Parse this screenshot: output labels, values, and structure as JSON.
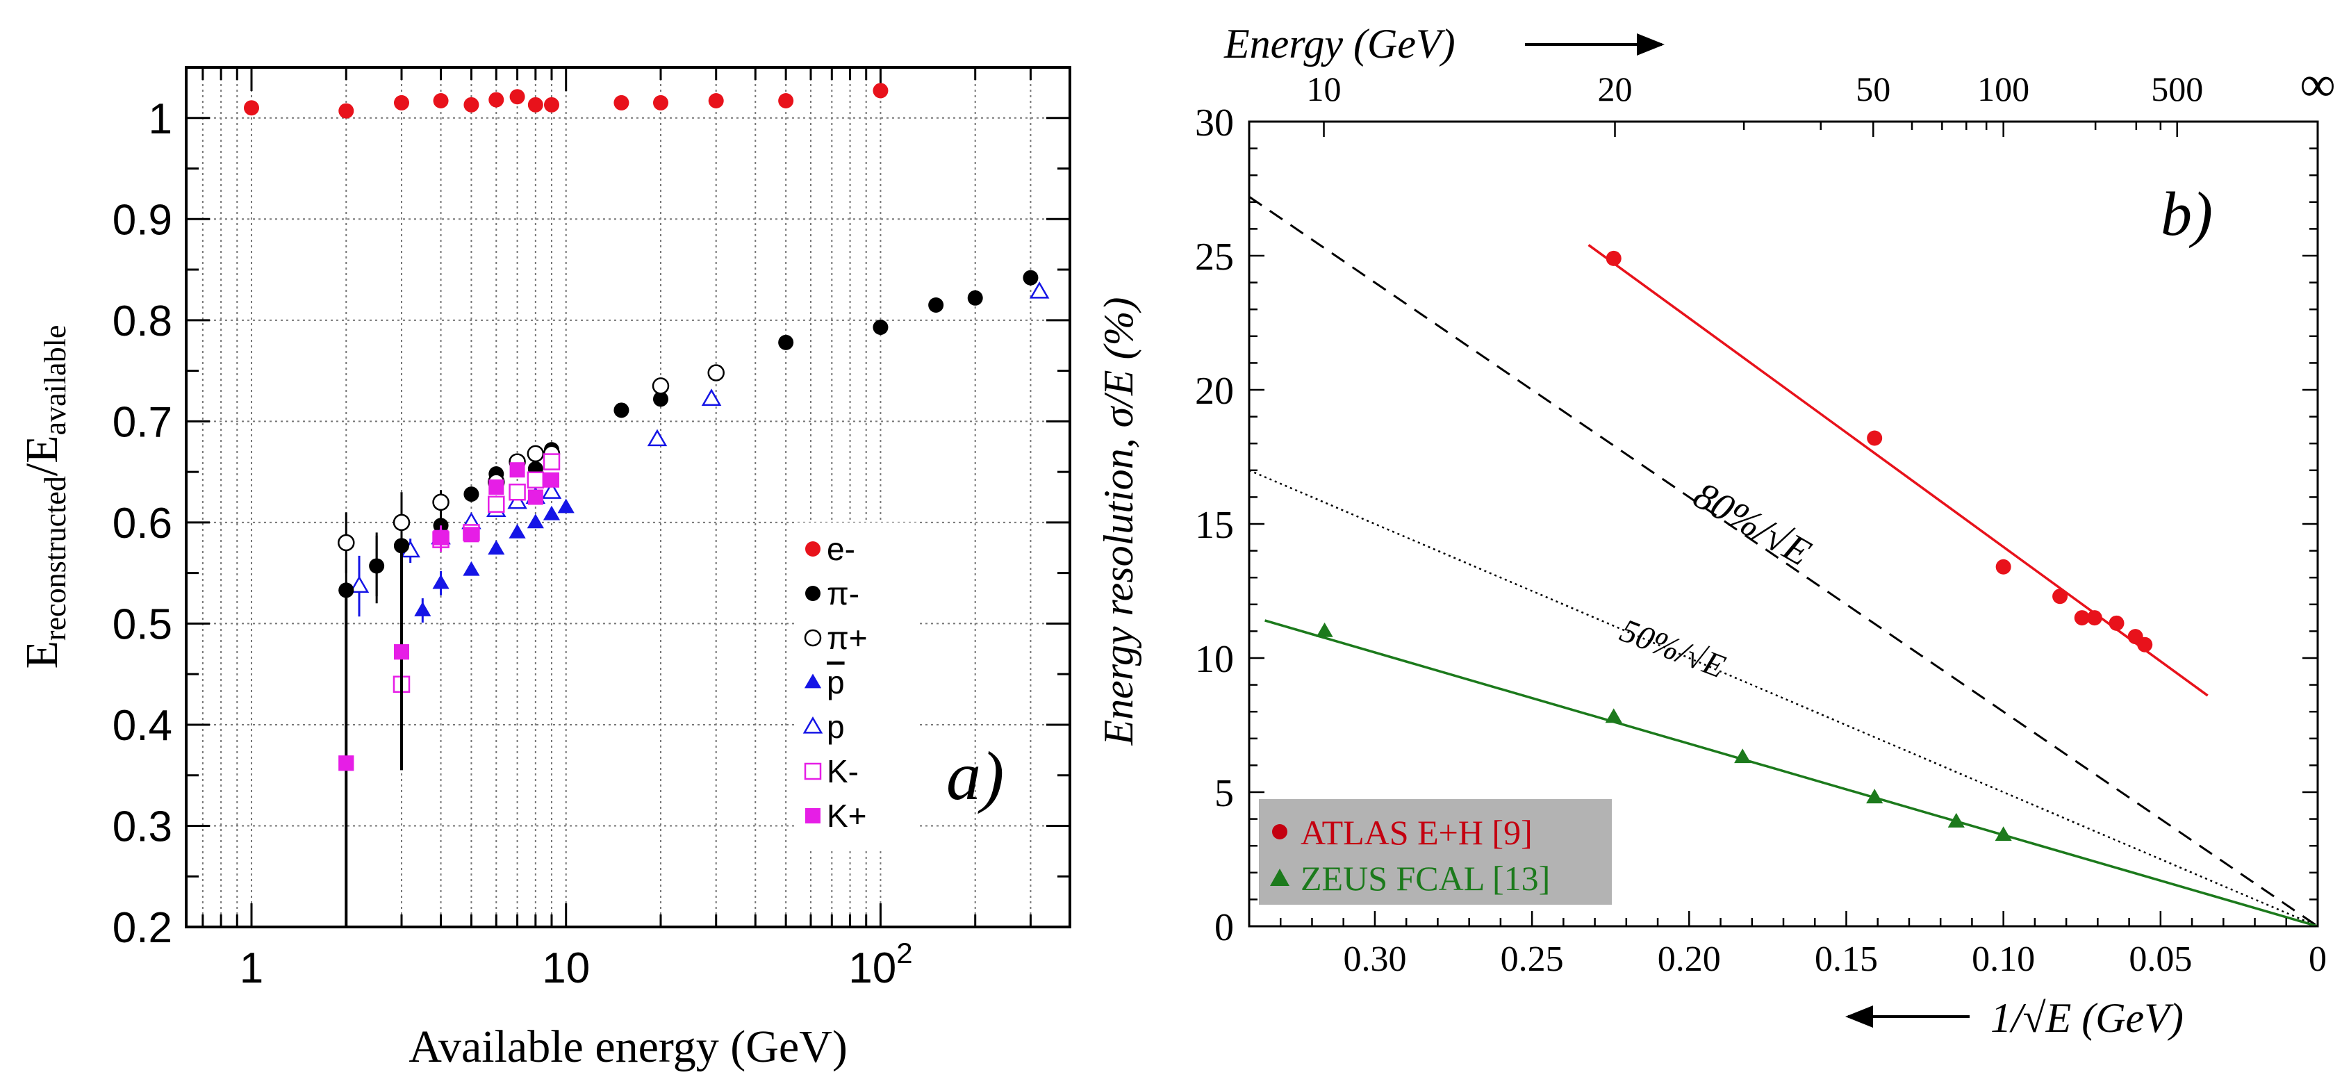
{
  "colors": {
    "electron": "#e8121b",
    "pion_minus": "#000000",
    "pion_plus": "#000000",
    "antiproton": "#1515e6",
    "proton": "#1515e6",
    "kaon": "#e61ee6",
    "atlas": "#e8121b",
    "atlas_label": "#c40010",
    "zeus": "#1c7a1c",
    "legend_box_b": "#b3b3b3",
    "line_80": "#000000",
    "line_50": "#000000"
  },
  "chart_data": [
    {
      "panel_label": "a)",
      "type": "scatter",
      "ylabel_main": "E",
      "ylabel_sub1": "reconstructed",
      "ylabel_mid": "/E",
      "ylabel_sub2": "available",
      "xlabel": "Available energy (GeV)",
      "x_scale": "log",
      "xlim": [
        0.62,
        400
      ],
      "ylim": [
        0.2,
        1.05
      ],
      "grid": true,
      "legend_position": "right-center",
      "yticks": [
        "0.2",
        "0.3",
        "0.4",
        "0.5",
        "0.6",
        "0.7",
        "0.8",
        "0.9",
        "1"
      ],
      "xticks": [
        {
          "value": 1,
          "label": "1"
        },
        {
          "value": 10,
          "label": "10"
        },
        {
          "value": 100,
          "label": "10",
          "sup": "2"
        }
      ],
      "series": [
        {
          "key": "e_minus",
          "name": "e-",
          "marker": "filled-circle",
          "color": "#e8121b",
          "points": [
            [
              1,
              1.01
            ],
            [
              2,
              1.007
            ],
            [
              3,
              1.015
            ],
            [
              4,
              1.017
            ],
            [
              5,
              1.013
            ],
            [
              6,
              1.018
            ],
            [
              7,
              1.021
            ],
            [
              8,
              1.013
            ],
            [
              9,
              1.013
            ],
            [
              15,
              1.015
            ],
            [
              20,
              1.015
            ],
            [
              30,
              1.017
            ],
            [
              50,
              1.017
            ],
            [
              100,
              1.027
            ]
          ]
        },
        {
          "key": "pi_minus",
          "name": "π-",
          "marker": "filled-circle",
          "color": "#000000",
          "points": [
            [
              2,
              0.533
            ],
            [
              2.5,
              0.557
            ],
            [
              3,
              0.577
            ],
            [
              4,
              0.597
            ],
            [
              5,
              0.628
            ],
            [
              6,
              0.648
            ],
            [
              7,
              0.658
            ],
            [
              8,
              0.653
            ],
            [
              9,
              0.672
            ],
            [
              15,
              0.711
            ],
            [
              20,
              0.722
            ],
            [
              30,
              0.748
            ],
            [
              50,
              0.778
            ],
            [
              100,
              0.793
            ],
            [
              150,
              0.815
            ],
            [
              200,
              0.822
            ],
            [
              300,
              0.842
            ]
          ]
        },
        {
          "key": "pi_plus",
          "name": "π+",
          "marker": "open-circle",
          "color": "#000000",
          "points": [
            [
              2,
              0.58
            ],
            [
              3,
              0.6
            ],
            [
              4,
              0.62
            ],
            [
              6,
              0.64
            ],
            [
              7,
              0.66
            ],
            [
              8,
              0.668
            ],
            [
              9,
              0.668
            ],
            [
              20,
              0.735
            ],
            [
              30,
              0.748
            ]
          ]
        },
        {
          "key": "pbar",
          "name": "p",
          "overline": true,
          "marker": "filled-triangle",
          "color": "#1515e6",
          "points": [
            [
              3.5,
              0.513
            ],
            [
              4,
              0.54
            ],
            [
              5,
              0.553
            ],
            [
              6,
              0.574
            ],
            [
              7,
              0.59
            ],
            [
              8,
              0.6
            ],
            [
              9,
              0.608
            ],
            [
              10,
              0.615
            ]
          ]
        },
        {
          "key": "p",
          "name": "p",
          "marker": "open-triangle",
          "color": "#1515e6",
          "points": [
            [
              2.2,
              0.537
            ],
            [
              3.2,
              0.572
            ],
            [
              4,
              0.585
            ],
            [
              5,
              0.6
            ],
            [
              6,
              0.612
            ],
            [
              7,
              0.62
            ],
            [
              8,
              0.625
            ],
            [
              9,
              0.63
            ],
            [
              19.5,
              0.682
            ],
            [
              29,
              0.722
            ],
            [
              320,
              0.828
            ]
          ]
        },
        {
          "key": "k_minus",
          "name": "K-",
          "marker": "open-square",
          "color": "#e61ee6",
          "points": [
            [
              3,
              0.44
            ],
            [
              4,
              0.583
            ],
            [
              5,
              0.59
            ],
            [
              6,
              0.618
            ],
            [
              7,
              0.63
            ],
            [
              8,
              0.642
            ],
            [
              9,
              0.66
            ]
          ]
        },
        {
          "key": "k_plus",
          "name": "K+",
          "marker": "filled-square",
          "color": "#e61ee6",
          "points": [
            [
              2,
              0.362
            ],
            [
              3,
              0.472
            ],
            [
              4,
              0.585
            ],
            [
              5,
              0.588
            ],
            [
              6,
              0.635
            ],
            [
              7,
              0.652
            ],
            [
              8,
              0.625
            ],
            [
              9,
              0.642
            ]
          ]
        }
      ]
    },
    {
      "panel_label": "b)",
      "type": "scatter",
      "top_axis_label": "Energy (GeV)",
      "xlabel": "1/√E (GeV)",
      "ylabel": "Energy resolution, σ/E (%)",
      "xlim": [
        0.34,
        0
      ],
      "ylim": [
        0,
        30
      ],
      "grid": false,
      "legend_position": "bottom-left",
      "yticks": [
        "0",
        "5",
        "10",
        "15",
        "20",
        "25",
        "30"
      ],
      "xticks": [
        "0.30",
        "0.25",
        "0.20",
        "0.15",
        "0.10",
        "0.05",
        "0"
      ],
      "top_ticks": [
        {
          "energy": 10,
          "label": "10"
        },
        {
          "energy": 20,
          "label": "20"
        },
        {
          "energy": 50,
          "label": "50"
        },
        {
          "energy": 100,
          "label": "100"
        },
        {
          "energy": 500,
          "label": "500"
        },
        {
          "energy": null,
          "label": "∞"
        }
      ],
      "reference_lines": [
        {
          "label": "80%/√E",
          "coefficient": 80,
          "style": "dashed"
        },
        {
          "label": "50%/√E",
          "coefficient": 50,
          "style": "dotted"
        }
      ],
      "series": [
        {
          "key": "atlas",
          "name": "ATLAS  E+H [9]",
          "marker": "filled-circle",
          "color": "#e8121b",
          "points": [
            [
              0.224,
              24.9
            ],
            [
              0.141,
              18.2
            ],
            [
              0.1,
              13.4
            ],
            [
              0.082,
              12.3
            ],
            [
              0.075,
              11.5
            ],
            [
              0.071,
              11.5
            ],
            [
              0.064,
              11.3
            ],
            [
              0.058,
              10.8
            ],
            [
              0.055,
              10.5
            ]
          ],
          "fit": [
            [
              0.232,
              25.4
            ],
            [
              0.035,
              8.6
            ]
          ]
        },
        {
          "key": "zeus",
          "name": "ZEUS FCAL [13]",
          "marker": "filled-triangle",
          "color": "#1c7a1c",
          "points": [
            [
              0.316,
              11.0
            ],
            [
              0.224,
              7.8
            ],
            [
              0.183,
              6.3
            ],
            [
              0.141,
              4.8
            ],
            [
              0.115,
              3.9
            ],
            [
              0.1,
              3.4
            ]
          ],
          "fit": [
            [
              0.335,
              11.4
            ],
            [
              0,
              0
            ]
          ]
        }
      ]
    }
  ]
}
